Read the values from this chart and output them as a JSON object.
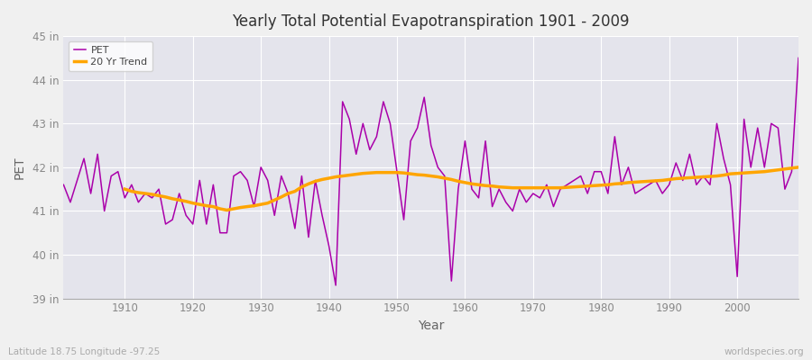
{
  "title": "Yearly Total Potential Evapotranspiration 1901 - 2009",
  "xlabel": "Year",
  "ylabel": "PET",
  "subtitle_left": "Latitude 18.75 Longitude -97.25",
  "subtitle_right": "worldspecies.org",
  "ylim": [
    39,
    45
  ],
  "yticks": [
    39,
    40,
    41,
    42,
    43,
    44,
    45
  ],
  "ytick_labels": [
    "39 in",
    "40 in",
    "41 in",
    "42 in",
    "43 in",
    "44 in",
    "45 in"
  ],
  "xlim": [
    1901,
    2009
  ],
  "pet_color": "#AA00AA",
  "trend_color": "#FFA500",
  "bg_color": "#F0F0F0",
  "plot_bg_color": "#E4E4EC",
  "grid_color": "#FFFFFF",
  "years": [
    1901,
    1902,
    1903,
    1904,
    1905,
    1906,
    1907,
    1908,
    1909,
    1910,
    1911,
    1912,
    1913,
    1914,
    1915,
    1916,
    1917,
    1918,
    1919,
    1920,
    1921,
    1922,
    1923,
    1924,
    1925,
    1926,
    1927,
    1928,
    1929,
    1930,
    1931,
    1932,
    1933,
    1934,
    1935,
    1936,
    1937,
    1938,
    1939,
    1940,
    1941,
    1942,
    1943,
    1944,
    1945,
    1946,
    1947,
    1948,
    1949,
    1950,
    1951,
    1952,
    1953,
    1954,
    1955,
    1956,
    1957,
    1958,
    1959,
    1960,
    1961,
    1962,
    1963,
    1964,
    1965,
    1966,
    1967,
    1968,
    1969,
    1970,
    1971,
    1972,
    1973,
    1974,
    1975,
    1976,
    1977,
    1978,
    1979,
    1980,
    1981,
    1982,
    1983,
    1984,
    1985,
    1986,
    1987,
    1988,
    1989,
    1990,
    1991,
    1992,
    1993,
    1994,
    1995,
    1996,
    1997,
    1998,
    1999,
    2000,
    2001,
    2002,
    2003,
    2004,
    2005,
    2006,
    2007,
    2008,
    2009
  ],
  "pet_values": [
    41.6,
    41.2,
    41.7,
    42.2,
    41.4,
    42.3,
    41.0,
    41.8,
    41.9,
    41.3,
    41.6,
    41.2,
    41.4,
    41.3,
    41.5,
    40.7,
    40.8,
    41.4,
    40.9,
    40.7,
    41.7,
    40.7,
    41.6,
    40.5,
    40.5,
    41.8,
    41.9,
    41.7,
    41.1,
    42.0,
    41.7,
    40.9,
    41.8,
    41.4,
    40.6,
    41.8,
    40.4,
    41.7,
    40.9,
    40.2,
    39.3,
    43.5,
    43.1,
    42.3,
    43.0,
    42.4,
    42.7,
    43.5,
    43.0,
    41.9,
    40.8,
    42.6,
    42.9,
    43.6,
    42.5,
    42.0,
    41.8,
    39.4,
    41.5,
    42.6,
    41.5,
    41.3,
    42.6,
    41.1,
    41.5,
    41.2,
    41.0,
    41.5,
    41.2,
    41.4,
    41.3,
    41.6,
    41.1,
    41.5,
    41.6,
    41.7,
    41.8,
    41.4,
    41.9,
    41.9,
    41.4,
    42.7,
    41.6,
    42.0,
    41.4,
    41.5,
    41.6,
    41.7,
    41.4,
    41.6,
    42.1,
    41.7,
    42.3,
    41.6,
    41.8,
    41.6,
    43.0,
    42.2,
    41.6,
    39.5,
    43.1,
    42.0,
    42.9,
    42.0,
    43.0,
    42.9,
    41.5,
    41.9,
    44.5
  ],
  "trend_values": [
    null,
    null,
    null,
    null,
    null,
    null,
    null,
    null,
    null,
    41.5,
    41.45,
    41.42,
    41.4,
    41.38,
    41.35,
    41.32,
    41.28,
    41.25,
    41.22,
    41.18,
    41.15,
    41.12,
    41.1,
    41.05,
    41.02,
    41.05,
    41.08,
    41.1,
    41.12,
    41.15,
    41.18,
    41.25,
    41.32,
    41.4,
    41.45,
    41.55,
    41.62,
    41.68,
    41.72,
    41.75,
    41.78,
    41.8,
    41.82,
    41.84,
    41.86,
    41.87,
    41.88,
    41.88,
    41.88,
    41.88,
    41.87,
    41.85,
    41.83,
    41.82,
    41.8,
    41.78,
    41.75,
    41.72,
    41.68,
    41.65,
    41.62,
    41.6,
    41.58,
    41.57,
    41.55,
    41.54,
    41.53,
    41.53,
    41.53,
    41.53,
    41.53,
    41.53,
    41.53,
    41.53,
    41.54,
    41.55,
    41.56,
    41.57,
    41.58,
    41.59,
    41.6,
    41.62,
    41.63,
    41.65,
    41.66,
    41.67,
    41.68,
    41.69,
    41.7,
    41.72,
    41.74,
    41.75,
    41.76,
    41.77,
    41.78,
    41.79,
    41.8,
    41.82,
    41.85,
    41.86,
    41.87,
    41.88,
    41.89,
    41.9,
    41.92,
    41.94,
    41.96,
    41.98,
    42.0
  ]
}
